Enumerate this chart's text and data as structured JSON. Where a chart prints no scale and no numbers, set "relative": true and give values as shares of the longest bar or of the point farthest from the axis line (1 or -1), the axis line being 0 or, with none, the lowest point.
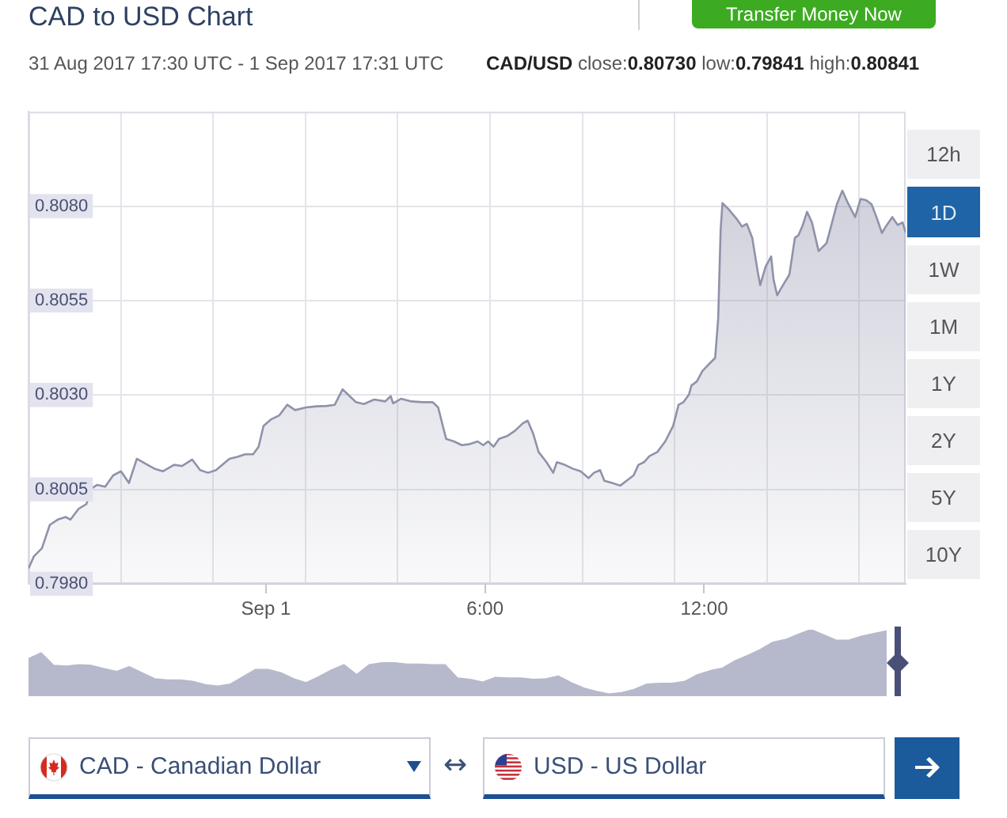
{
  "chart_data": [
    {
      "type": "area",
      "title": "CAD to USD Chart",
      "subtitle": "31 Aug 2017 17:30 UTC - 1 Sep 2017 17:31 UTC",
      "annotations": [
        "CAD/USD close:0.80730 low:0.79841 high:0.80841",
        "12h",
        "1D",
        "1W",
        "1M",
        "1Y",
        "2Y",
        "5Y",
        "10Y",
        "Transfer Money Now",
        "CAD - Canadian Dollar",
        "↔",
        "USD - US Dollar"
      ],
      "x": [
        "2017-08-31T17:30",
        "2017-08-31T17:39",
        "2017-08-31T17:52",
        "2017-08-31T18:05",
        "2017-08-31T18:18",
        "2017-08-31T18:31",
        "2017-08-31T18:39",
        "2017-08-31T18:52",
        "2017-08-31T19:05",
        "2017-08-31T19:14",
        "2017-08-31T19:23",
        "2017-08-31T19:36",
        "2017-08-31T19:49",
        "2017-08-31T20:02",
        "2017-08-31T20:15",
        "2017-08-31T20:28",
        "2017-08-31T20:41",
        "2017-08-31T20:58",
        "2017-08-31T21:11",
        "2017-08-31T21:29",
        "2017-08-31T21:42",
        "2017-08-31T21:59",
        "2017-08-31T22:12",
        "2017-08-31T22:25",
        "2017-08-31T22:38",
        "2017-08-31T23:00",
        "2017-08-31T23:13",
        "2017-08-31T23:26",
        "2017-08-31T23:39",
        "2017-08-31T23:48",
        "2017-08-31T23:56",
        "2017-09-01T00:09",
        "2017-09-01T00:22",
        "2017-09-01T00:35",
        "2017-09-01T00:48",
        "2017-09-01T01:06",
        "2017-09-01T01:23",
        "2017-09-01T01:40",
        "2017-09-01T01:53",
        "2017-09-01T02:06",
        "2017-09-01T02:15",
        "2017-09-01T02:28",
        "2017-09-01T02:41",
        "2017-09-01T02:58",
        "2017-09-01T03:16",
        "2017-09-01T03:25",
        "2017-09-01T03:29",
        "2017-09-01T03:42",
        "2017-09-01T03:59",
        "2017-09-01T04:17",
        "2017-09-01T04:34",
        "2017-09-01T04:43",
        "2017-09-01T04:56",
        "2017-09-01T05:09",
        "2017-09-01T05:22",
        "2017-09-01T05:35",
        "2017-09-01T05:48",
        "2017-09-01T05:57",
        "2017-09-01T06:05",
        "2017-09-01T06:14",
        "2017-09-01T06:23",
        "2017-09-01T06:36",
        "2017-09-01T06:49",
        "2017-09-01T07:02",
        "2017-09-01T07:10",
        "2017-09-01T07:19",
        "2017-09-01T07:28",
        "2017-09-01T07:41",
        "2017-09-01T07:52",
        "2017-09-01T07:58",
        "2017-09-01T08:11",
        "2017-09-01T08:24",
        "2017-09-01T08:37",
        "2017-09-01T08:50",
        "2017-09-01T08:59",
        "2017-09-01T09:09",
        "2017-09-01T09:16",
        "2017-09-01T09:29",
        "2017-09-01T09:42",
        "2017-09-01T09:55",
        "2017-09-01T10:04",
        "2017-09-01T10:12",
        "2017-09-01T10:21",
        "2017-09-01T10:30",
        "2017-09-01T10:43",
        "2017-09-01T10:56",
        "2017-09-01T11:09",
        "2017-09-01T11:18",
        "2017-09-01T11:26",
        "2017-09-01T11:35",
        "2017-09-01T11:39",
        "2017-09-01T11:48",
        "2017-09-01T11:57",
        "2017-09-01T12:05",
        "2017-09-01T12:18",
        "2017-09-01T12:23",
        "2017-09-01T12:27",
        "2017-09-01T12:30",
        "2017-09-01T12:40",
        "2017-09-01T12:53",
        "2017-09-01T13:02",
        "2017-09-01T13:10",
        "2017-09-01T13:19",
        "2017-09-01T13:28",
        "2017-09-01T13:32",
        "2017-09-01T13:41",
        "2017-09-01T13:50",
        "2017-09-01T13:54",
        "2017-09-01T14:00",
        "2017-09-01T14:07",
        "2017-09-01T14:20",
        "2017-09-01T14:29",
        "2017-09-01T14:35",
        "2017-09-01T14:42",
        "2017-09-01T14:49",
        "2017-09-01T14:57",
        "2017-09-01T15:08",
        "2017-09-01T15:21",
        "2017-09-01T15:29",
        "2017-09-01T15:38",
        "2017-09-01T15:47",
        "2017-09-01T15:55",
        "2017-09-01T16:08",
        "2017-09-01T16:17",
        "2017-09-01T16:26",
        "2017-09-01T16:35",
        "2017-09-01T16:43",
        "2017-09-01T16:52",
        "2017-09-01T17:00",
        "2017-09-01T17:09",
        "2017-09-01T17:18",
        "2017-09-01T17:26",
        "2017-09-01T17:31"
      ],
      "values": [
        0.79841,
        0.79873,
        0.79894,
        0.79956,
        0.7997,
        0.79977,
        0.7997,
        0.79998,
        0.80011,
        0.80053,
        0.80062,
        0.80057,
        0.80087,
        0.80098,
        0.80067,
        0.80131,
        0.80119,
        0.80104,
        0.80098,
        0.80115,
        0.80112,
        0.80129,
        0.80101,
        0.80094,
        0.80101,
        0.80131,
        0.80136,
        0.80143,
        0.80143,
        0.80163,
        0.80218,
        0.80236,
        0.80246,
        0.80274,
        0.8026,
        0.80267,
        0.8027,
        0.80271,
        0.80274,
        0.80315,
        0.80301,
        0.80281,
        0.80276,
        0.80288,
        0.80283,
        0.80297,
        0.80278,
        0.8029,
        0.80283,
        0.80281,
        0.80281,
        0.80267,
        0.80184,
        0.80177,
        0.80167,
        0.8017,
        0.80177,
        0.80167,
        0.80177,
        0.80163,
        0.80184,
        0.80191,
        0.80205,
        0.80225,
        0.80232,
        0.80198,
        0.80149,
        0.80122,
        0.80094,
        0.80122,
        0.80115,
        0.80105,
        0.80098,
        0.8008,
        0.80094,
        0.80101,
        0.80073,
        0.80067,
        0.8006,
        0.80076,
        0.80087,
        0.80115,
        0.80122,
        0.80138,
        0.80149,
        0.80177,
        0.80218,
        0.80274,
        0.80281,
        0.80301,
        0.80325,
        0.80336,
        0.80363,
        0.80377,
        0.80398,
        0.80502,
        0.80736,
        0.80808,
        0.80792,
        0.80767,
        0.80746,
        0.80753,
        0.80716,
        0.80626,
        0.80591,
        0.8064,
        0.80667,
        0.80605,
        0.80564,
        0.80584,
        0.80619,
        0.80716,
        0.80723,
        0.8075,
        0.80785,
        0.80757,
        0.80681,
        0.80702,
        0.8075,
        0.80805,
        0.80841,
        0.80812,
        0.80771,
        0.80819,
        0.80816,
        0.80805,
        0.80771,
        0.80729,
        0.8075,
        0.80771,
        0.8075,
        0.80757,
        0.8073
      ],
      "color": "#8f92aa",
      "xlim": [
        "2017-08-31T17:30",
        "2017-09-01T17:31"
      ],
      "xticks": [
        {
          "value": "2017-08-31T20:02",
          "label": null
        },
        {
          "value": "2017-08-31T22:33",
          "label": null
        },
        {
          "value": "2017-09-01T00:00",
          "label": "Sep 1"
        },
        {
          "value": "2017-09-01T01:05",
          "label": null
        },
        {
          "value": "2017-09-01T03:36",
          "label": null
        },
        {
          "value": "2017-09-01T06:00",
          "label": "6:00"
        },
        {
          "value": "2017-09-01T06:08",
          "label": null
        },
        {
          "value": "2017-09-01T08:40",
          "label": null
        },
        {
          "value": "2017-09-01T11:11",
          "label": null
        },
        {
          "value": "2017-09-01T12:00",
          "label": "12:00"
        },
        {
          "value": "2017-09-01T13:43",
          "label": null
        },
        {
          "value": "2017-09-01T16:14",
          "label": null
        }
      ],
      "ylim": [
        0.798,
        0.8105
      ],
      "yticks": [
        {
          "value": 0.798,
          "label": "0.7980"
        },
        {
          "value": 0.8005,
          "label": "0.8005"
        },
        {
          "value": 0.803,
          "label": "0.8030"
        },
        {
          "value": 0.8055,
          "label": "0.8055"
        },
        {
          "value": 0.808,
          "label": "0.8080"
        }
      ],
      "grid": true
    },
    {
      "type": "area",
      "relative": true,
      "categories": [
        null,
        null,
        null,
        null,
        null,
        null,
        null,
        null,
        null,
        null,
        null,
        null,
        null,
        null,
        null,
        null,
        null,
        null,
        null,
        null,
        null,
        null,
        null,
        null,
        null,
        null,
        null,
        null,
        null,
        null,
        null,
        null,
        null,
        null,
        null,
        null,
        null,
        null,
        null,
        null,
        null,
        null,
        null,
        null,
        null,
        null,
        null,
        null,
        null,
        null,
        null,
        null,
        null,
        null,
        null,
        null,
        null,
        null,
        null,
        null,
        null,
        null,
        null,
        null,
        null,
        null,
        null,
        null,
        null
      ],
      "values": [
        0.56,
        0.65,
        0.46,
        0.45,
        0.47,
        0.46,
        0.41,
        0.37,
        0.44,
        0.35,
        0.26,
        0.24,
        0.24,
        0.22,
        0.17,
        0.15,
        0.18,
        0.29,
        0.4,
        0.4,
        0.35,
        0.26,
        0.2,
        0.29,
        0.39,
        0.47,
        0.32,
        0.47,
        0.5,
        0.5,
        0.48,
        0.48,
        0.47,
        0.47,
        0.27,
        0.25,
        0.21,
        0.28,
        0.27,
        0.27,
        0.25,
        0.26,
        0.3,
        0.2,
        0.12,
        0.07,
        0.03,
        0.05,
        0.1,
        0.18,
        0.19,
        0.19,
        0.22,
        0.32,
        0.38,
        0.42,
        0.53,
        0.61,
        0.7,
        0.81,
        0.85,
        0.93,
        1,
        0.92,
        0.84,
        0.84,
        0.9,
        0.94,
        0.98
      ],
      "color": "#b6b9cb"
    }
  ]
}
